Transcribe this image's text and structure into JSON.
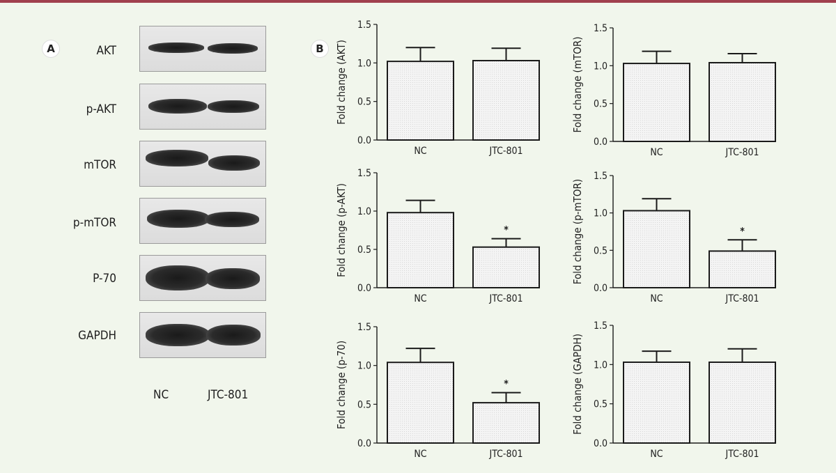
{
  "colors": {
    "top_rule": "#a0404e",
    "background": "#f1f6ec",
    "bar_fill": "#f4f4f4",
    "bar_stroke": "#1a1a1a"
  },
  "panel_a": {
    "label": "A",
    "proteins": [
      "AKT",
      "p-AKT",
      "mTOR",
      "p-mTOR",
      "P-70",
      "GAPDH"
    ],
    "lanes": [
      "NC",
      "JTC-801"
    ]
  },
  "panel_b": {
    "label": "B"
  },
  "chart_data": [
    {
      "type": "bar",
      "ylabel": "Fold change (AKT)",
      "categories": [
        "NC",
        "JTC-801"
      ],
      "values": [
        1.02,
        1.03
      ],
      "errors": [
        0.18,
        0.16
      ],
      "significance": [
        "",
        ""
      ],
      "ylim": [
        0,
        1.5
      ],
      "yticks": [
        "0.0",
        "0.5",
        "1.0",
        "1.5"
      ]
    },
    {
      "type": "bar",
      "ylabel": "Fold change (mTOR)",
      "categories": [
        "NC",
        "JTC-801"
      ],
      "values": [
        1.03,
        1.04
      ],
      "errors": [
        0.16,
        0.12
      ],
      "significance": [
        "",
        ""
      ],
      "ylim": [
        0,
        1.5
      ],
      "yticks": [
        "0.0",
        "0.5",
        "1.0",
        "1.5"
      ]
    },
    {
      "type": "bar",
      "ylabel": "Fold change (p-AKT)",
      "categories": [
        "NC",
        "JTC-801"
      ],
      "values": [
        0.98,
        0.53
      ],
      "errors": [
        0.16,
        0.11
      ],
      "significance": [
        "",
        "*"
      ],
      "ylim": [
        0,
        1.5
      ],
      "yticks": [
        "0.0",
        "0.5",
        "1.0",
        "1.5"
      ]
    },
    {
      "type": "bar",
      "ylabel": "Fold change (p-mTOR)",
      "categories": [
        "NC",
        "JTC-801"
      ],
      "values": [
        1.03,
        0.49
      ],
      "errors": [
        0.16,
        0.15
      ],
      "significance": [
        "",
        "*"
      ],
      "ylim": [
        0,
        1.5
      ],
      "yticks": [
        "0.0",
        "0.5",
        "1.0",
        "1.5"
      ]
    },
    {
      "type": "bar",
      "ylabel": "Fold change (p-70)",
      "categories": [
        "NC",
        "JTC-801"
      ],
      "values": [
        1.04,
        0.52
      ],
      "errors": [
        0.18,
        0.13
      ],
      "significance": [
        "",
        "*"
      ],
      "ylim": [
        0,
        1.5
      ],
      "yticks": [
        "0.0",
        "0.5",
        "1.0",
        "1.5"
      ]
    },
    {
      "type": "bar",
      "ylabel": "Fold change (GAPDH)",
      "categories": [
        "NC",
        "JTC-801"
      ],
      "values": [
        1.03,
        1.03
      ],
      "errors": [
        0.14,
        0.17
      ],
      "significance": [
        "",
        ""
      ],
      "ylim": [
        0,
        1.5
      ],
      "yticks": [
        "0.0",
        "0.5",
        "1.0",
        "1.5"
      ]
    }
  ]
}
